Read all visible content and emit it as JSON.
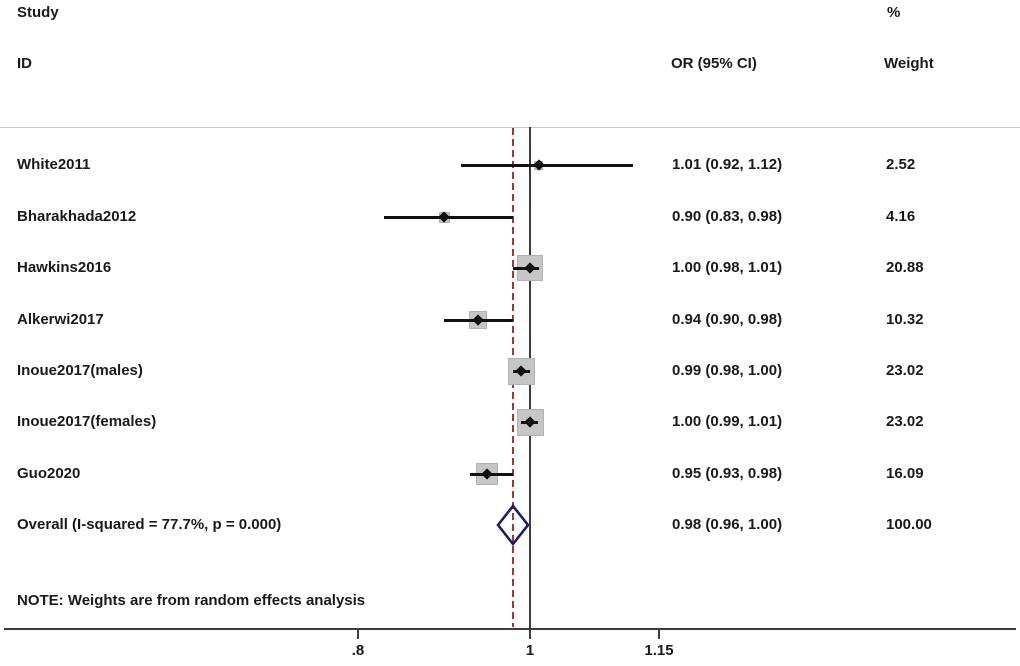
{
  "header": {
    "study_line1": "Study",
    "study_line2": "ID",
    "or_ci": "OR (95% CI)",
    "percent": "%",
    "weight": "Weight"
  },
  "note": "NOTE: Weights are from random effects analysis",
  "chart_data": {
    "type": "forest",
    "effect_measure": "OR",
    "studies": [
      {
        "id": "White2011",
        "or": 1.01,
        "ci_low": 0.92,
        "ci_high": 1.12,
        "or_ci_label": "1.01 (0.92, 1.12)",
        "weight_pct": 2.52,
        "weight_label": "2.52"
      },
      {
        "id": "Bharakhada2012",
        "or": 0.9,
        "ci_low": 0.83,
        "ci_high": 0.98,
        "or_ci_label": "0.90 (0.83, 0.98)",
        "weight_pct": 4.16,
        "weight_label": "4.16"
      },
      {
        "id": "Hawkins2016",
        "or": 1.0,
        "ci_low": 0.98,
        "ci_high": 1.01,
        "or_ci_label": "1.00 (0.98, 1.01)",
        "weight_pct": 20.88,
        "weight_label": "20.88"
      },
      {
        "id": "Alkerwi2017",
        "or": 0.94,
        "ci_low": 0.9,
        "ci_high": 0.98,
        "or_ci_label": "0.94 (0.90, 0.98)",
        "weight_pct": 10.32,
        "weight_label": "10.32"
      },
      {
        "id": "Inoue2017(males)",
        "or": 0.99,
        "ci_low": 0.98,
        "ci_high": 1.0,
        "or_ci_label": "0.99 (0.98, 1.00)",
        "weight_pct": 23.02,
        "weight_label": "23.02"
      },
      {
        "id": "Inoue2017(females)",
        "or": 1.0,
        "ci_low": 0.99,
        "ci_high": 1.01,
        "or_ci_label": "1.00 (0.99, 1.01)",
        "weight_pct": 23.02,
        "weight_label": "23.02"
      },
      {
        "id": "Guo2020",
        "or": 0.95,
        "ci_low": 0.93,
        "ci_high": 0.98,
        "or_ci_label": "0.95 (0.93, 0.98)",
        "weight_pct": 16.09,
        "weight_label": "16.09"
      }
    ],
    "overall": {
      "id": "Overall  (I-squared = 77.7%, p = 0.000)",
      "or": 0.98,
      "ci_low": 0.96,
      "ci_high": 1.0,
      "or_ci_label": "0.98 (0.96, 1.00)",
      "weight_pct": 100.0,
      "weight_label": "100.00"
    },
    "heterogeneity": {
      "i_squared": "77.7%",
      "p_value": "0.000"
    },
    "x_axis": {
      "scale": "linear",
      "ticks": [
        {
          "value": 0.8,
          "label": ".8"
        },
        {
          "value": 1.0,
          "label": "1"
        },
        {
          "value": 1.15,
          "label": "1.15"
        }
      ],
      "null_line": 1.0,
      "overall_dashed_line": 0.98
    },
    "colors": {
      "square_fill": "#c6c6c6",
      "square_border": "#b2b2b2",
      "ci_line": "#111111",
      "point": "#111111",
      "diamond_outline": "#1b1b6e",
      "dashed_line": "#a03830",
      "axis_line": "#3c3c3c",
      "separator_line": "#c9c9c9",
      "text": "#1a1a1a"
    }
  }
}
